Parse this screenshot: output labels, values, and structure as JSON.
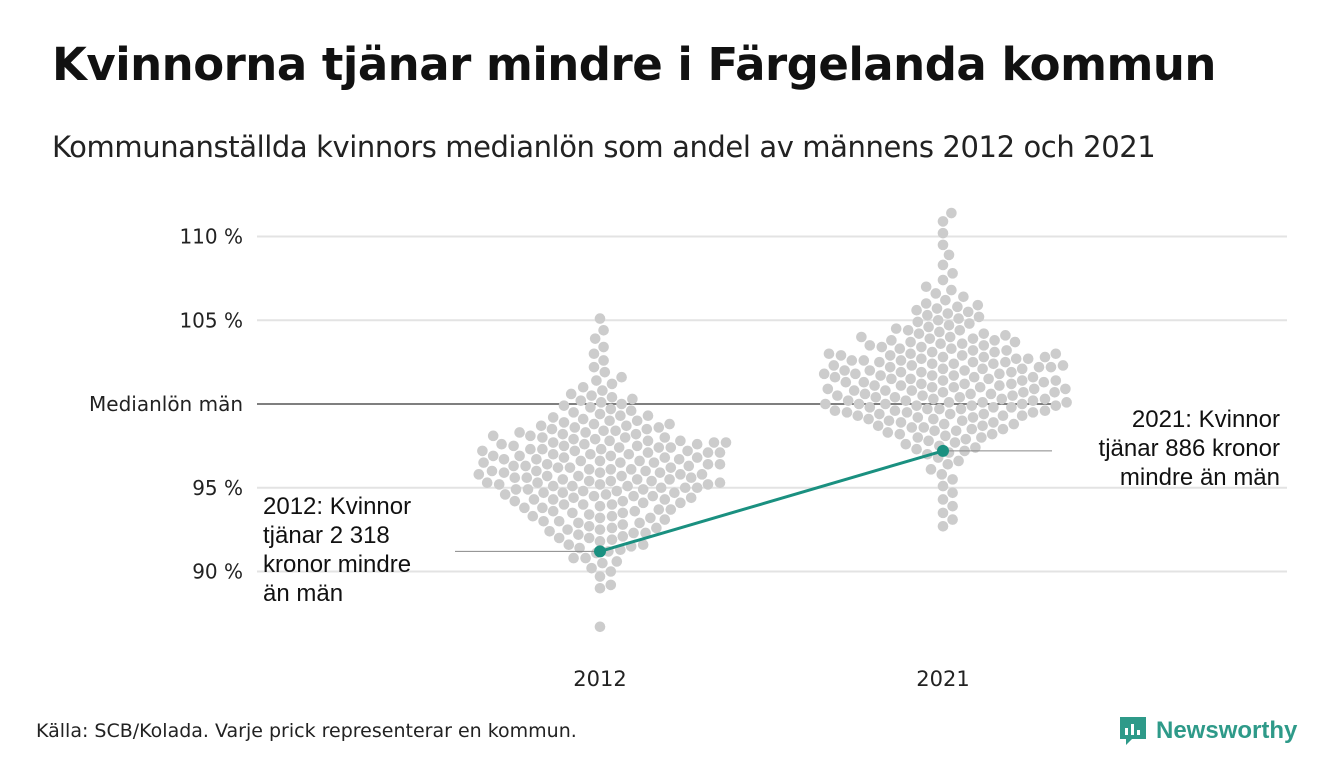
{
  "chart_data": {
    "type": "scatter",
    "title": "Kvinnorna tjänar mindre i Färgelanda kommun",
    "subtitle": "Kommunanställda kvinnors medianlön som andel av männens 2012 och 2021",
    "categories": [
      "2012",
      "2021"
    ],
    "y_ticks": [
      {
        "value": 90,
        "label": "90 %"
      },
      {
        "value": 95,
        "label": "95 %"
      },
      {
        "value": 105,
        "label": "105 %"
      },
      {
        "value": 110,
        "label": "110 %"
      }
    ],
    "reference_line": {
      "value": 100,
      "label": "Medianlön män"
    },
    "ylim": [
      86,
      111.5
    ],
    "grid": true,
    "highlight": {
      "color": "#1a9080",
      "values": [
        {
          "category": "2012",
          "value": 91.2
        },
        {
          "category": "2021",
          "value": 97.2
        }
      ]
    },
    "annotations": [
      {
        "category": "2012",
        "lines": [
          "2012: Kvinnor",
          "tjänar 2 318",
          "kronor mindre",
          "än män"
        ]
      },
      {
        "category": "2021",
        "lines": [
          "2021: Kvinnor",
          "tjänar 886 kronor",
          "mindre än män"
        ]
      }
    ],
    "background_series": [
      {
        "category": "2012",
        "description_note": "Varje prick representerar en kommun",
        "values": [
          86.7,
          89.0,
          89.2,
          89.7,
          90.0,
          90.2,
          90.5,
          90.6,
          90.8,
          90.8,
          91.1,
          91.2,
          91.3,
          91.4,
          91.5,
          91.6,
          91.6,
          91.8,
          91.9,
          92.0,
          92.0,
          92.1,
          92.2,
          92.3,
          92.3,
          92.4,
          92.5,
          92.5,
          92.6,
          92.6,
          92.7,
          92.8,
          92.9,
          92.9,
          93.0,
          93.0,
          93.1,
          93.2,
          93.2,
          93.3,
          93.3,
          93.4,
          93.5,
          93.5,
          93.6,
          93.6,
          93.7,
          93.7,
          93.8,
          93.8,
          93.9,
          94.0,
          94.0,
          94.0,
          94.1,
          94.1,
          94.2,
          94.2,
          94.3,
          94.3,
          94.3,
          94.4,
          94.4,
          94.5,
          94.5,
          94.5,
          94.6,
          94.6,
          94.7,
          94.7,
          94.7,
          94.8,
          94.8,
          94.9,
          94.9,
          94.9,
          95.0,
          95.0,
          95.0,
          95.1,
          95.1,
          95.1,
          95.2,
          95.2,
          95.2,
          95.3,
          95.3,
          95.3,
          95.4,
          95.4,
          95.4,
          95.5,
          95.5,
          95.5,
          95.6,
          95.6,
          95.6,
          95.7,
          95.7,
          95.7,
          95.8,
          95.8,
          95.8,
          95.9,
          95.9,
          95.9,
          96.0,
          96.0,
          96.0,
          96.1,
          96.1,
          96.1,
          96.2,
          96.2,
          96.2,
          96.3,
          96.3,
          96.3,
          96.4,
          96.4,
          96.4,
          96.5,
          96.5,
          96.5,
          96.6,
          96.6,
          96.6,
          96.7,
          96.7,
          96.7,
          96.8,
          96.8,
          96.8,
          96.9,
          96.9,
          96.9,
          97.0,
          97.0,
          97.0,
          97.1,
          97.1,
          97.1,
          97.2,
          97.2,
          97.2,
          97.3,
          97.3,
          97.3,
          97.4,
          97.4,
          97.4,
          97.5,
          97.5,
          97.5,
          97.6,
          97.6,
          97.6,
          97.7,
          97.7,
          97.7,
          97.8,
          97.8,
          97.8,
          97.9,
          97.9,
          98.0,
          98.0,
          98.0,
          98.1,
          98.1,
          98.2,
          98.2,
          98.3,
          98.3,
          98.4,
          98.4,
          98.5,
          98.5,
          98.6,
          98.6,
          98.7,
          98.7,
          98.8,
          98.8,
          98.9,
          99.0,
          99.0,
          99.1,
          99.2,
          99.3,
          99.3,
          99.4,
          99.5,
          99.6,
          99.7,
          99.8,
          99.9,
          100.0,
          100.1,
          100.2,
          100.3,
          100.4,
          100.5,
          100.6,
          100.8,
          101.0,
          101.2,
          101.4,
          101.6,
          101.9,
          102.2,
          102.6,
          103.0,
          103.4,
          103.9,
          104.4,
          105.1
        ]
      },
      {
        "category": "2021",
        "description_note": "Varje prick representerar en kommun",
        "values": [
          92.7,
          93.1,
          93.5,
          93.9,
          94.3,
          94.7,
          95.1,
          95.5,
          95.8,
          96.1,
          96.4,
          96.6,
          96.8,
          97.0,
          97.1,
          97.2,
          97.3,
          97.4,
          97.5,
          97.6,
          97.7,
          97.8,
          97.9,
          98.0,
          98.0,
          98.1,
          98.2,
          98.2,
          98.3,
          98.4,
          98.4,
          98.5,
          98.5,
          98.6,
          98.6,
          98.7,
          98.7,
          98.8,
          98.8,
          98.9,
          98.9,
          99.0,
          99.0,
          99.1,
          99.1,
          99.2,
          99.2,
          99.3,
          99.3,
          99.3,
          99.4,
          99.4,
          99.4,
          99.5,
          99.5,
          99.5,
          99.6,
          99.6,
          99.6,
          99.7,
          99.7,
          99.7,
          99.8,
          99.8,
          99.8,
          99.9,
          99.9,
          99.9,
          100.0,
          100.0,
          100.0,
          100.0,
          100.1,
          100.1,
          100.1,
          100.2,
          100.2,
          100.2,
          100.3,
          100.3,
          100.3,
          100.4,
          100.4,
          100.4,
          100.5,
          100.5,
          100.5,
          100.6,
          100.6,
          100.6,
          100.7,
          100.7,
          100.7,
          100.8,
          100.8,
          100.8,
          100.9,
          100.9,
          100.9,
          101.0,
          101.0,
          101.0,
          101.1,
          101.1,
          101.1,
          101.2,
          101.2,
          101.2,
          101.3,
          101.3,
          101.3,
          101.4,
          101.4,
          101.4,
          101.5,
          101.5,
          101.5,
          101.6,
          101.6,
          101.6,
          101.7,
          101.7,
          101.7,
          101.8,
          101.8,
          101.8,
          101.9,
          101.9,
          101.9,
          102.0,
          102.0,
          102.0,
          102.1,
          102.1,
          102.1,
          102.2,
          102.2,
          102.2,
          102.3,
          102.3,
          102.3,
          102.4,
          102.4,
          102.4,
          102.5,
          102.5,
          102.5,
          102.6,
          102.6,
          102.6,
          102.7,
          102.7,
          102.7,
          102.8,
          102.8,
          102.8,
          102.9,
          102.9,
          102.9,
          103.0,
          103.0,
          103.0,
          103.1,
          103.1,
          103.2,
          103.2,
          103.3,
          103.3,
          103.4,
          103.4,
          103.5,
          103.5,
          103.6,
          103.6,
          103.7,
          103.7,
          103.8,
          103.8,
          103.9,
          103.9,
          104.0,
          104.0,
          104.1,
          104.2,
          104.2,
          104.3,
          104.4,
          104.4,
          104.5,
          104.6,
          104.7,
          104.8,
          104.9,
          105.0,
          105.1,
          105.2,
          105.3,
          105.4,
          105.5,
          105.6,
          105.7,
          105.8,
          105.9,
          106.0,
          106.2,
          106.4,
          106.6,
          106.8,
          107.0,
          107.4,
          107.8,
          108.3,
          108.9,
          109.5,
          110.2,
          110.9,
          111.4
        ]
      }
    ]
  },
  "footer": {
    "source": "Källa: SCB/Kolada. Varje prick representerar en kommun.",
    "brand": "Newsworthy"
  },
  "colors": {
    "dots": "#cccccc",
    "highlight": "#1a9080",
    "grid": "#e3e3e3",
    "reference": "#333333",
    "brand": "#2e9a89"
  }
}
